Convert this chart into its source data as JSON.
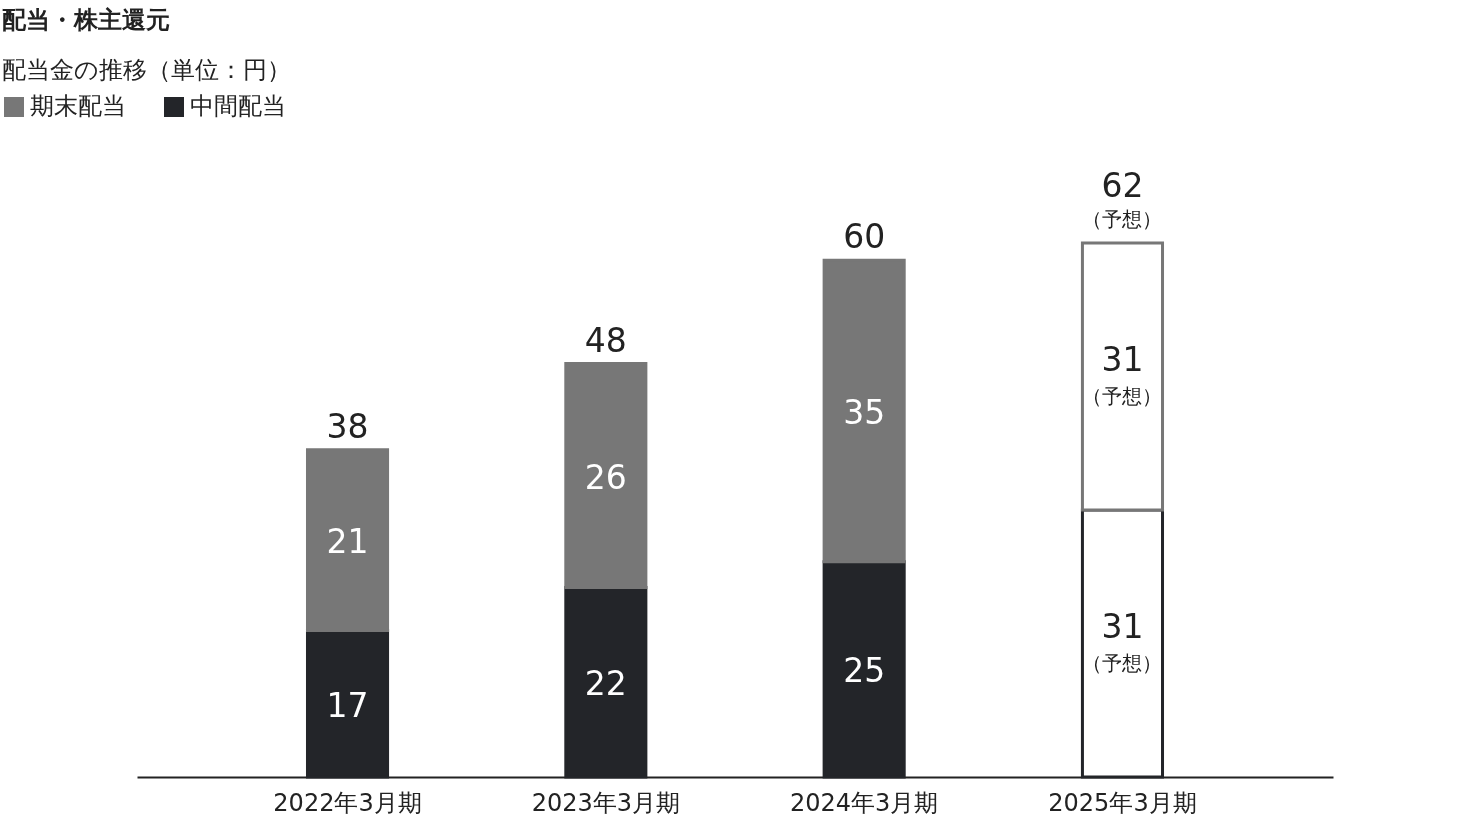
{
  "chart_data": {
    "type": "bar",
    "title": "配当・株主還元",
    "subtitle": "配当金の推移（単位：円）",
    "categories": [
      "2022年3月期",
      "2023年3月期",
      "2024年3月期",
      "2025年3月期"
    ],
    "stacked": true,
    "series": [
      {
        "name": "中間配当",
        "color": "#232529",
        "colors": [
          "#232529",
          "#232529",
          "#232529",
          "#ffffff"
        ],
        "values": [
          17,
          22,
          25,
          31
        ]
      },
      {
        "name": "期末配当",
        "color": "#777777",
        "colors": [
          "#777777",
          "#777777",
          "#777777",
          "#ffffff"
        ],
        "values": [
          21,
          26,
          35,
          31
        ]
      }
    ],
    "data_labels": true,
    "totals": [
      "38",
      "48",
      "60",
      "62"
    ],
    "annotations": [
      "（予想）",
      "（予想）",
      "（予想）"
    ],
    "legend": "top left"
  }
}
